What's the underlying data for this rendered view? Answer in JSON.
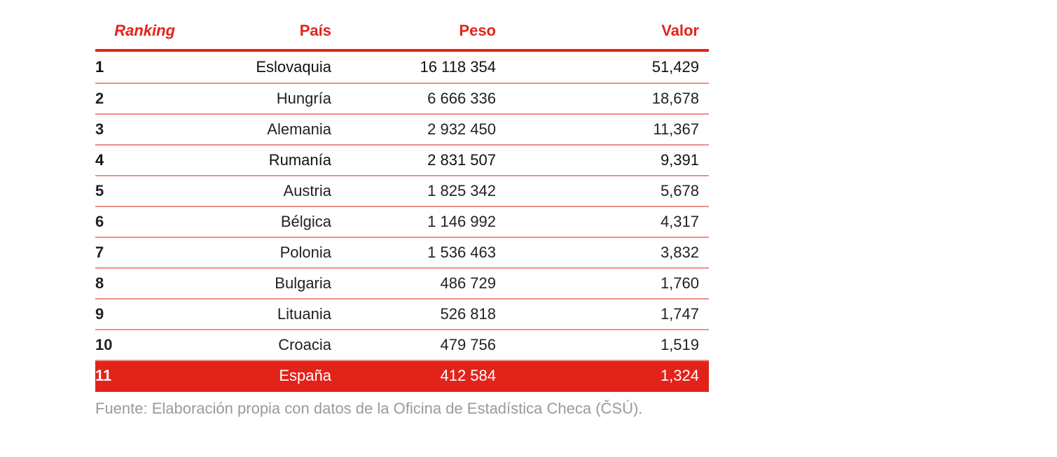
{
  "table": {
    "headers": {
      "rank": "Ranking",
      "country": "País",
      "weight": "Peso",
      "value": "Valor"
    },
    "rows": [
      {
        "rank": "1",
        "country": "Eslovaquia",
        "weight": "16 118 354",
        "value": "51,429"
      },
      {
        "rank": "2",
        "country": "Hungría",
        "weight": "6 666 336",
        "value": "18,678"
      },
      {
        "rank": "3",
        "country": "Alemania",
        "weight": "2 932 450",
        "value": "11,367"
      },
      {
        "rank": "4",
        "country": "Rumanía",
        "weight": "2 831 507",
        "value": "9,391"
      },
      {
        "rank": "5",
        "country": "Austria",
        "weight": "1 825 342",
        "value": "5,678"
      },
      {
        "rank": "6",
        "country": "Bélgica",
        "weight": "1 146 992",
        "value": "4,317"
      },
      {
        "rank": "7",
        "country": "Polonia",
        "weight": "1 536 463",
        "value": "3,832"
      },
      {
        "rank": "8",
        "country": "Bulgaria",
        "weight": "486 729",
        "value": "1,760"
      },
      {
        "rank": "9",
        "country": "Lituania",
        "weight": "526 818",
        "value": "1,747"
      },
      {
        "rank": "10",
        "country": "Croacia",
        "weight": "479 756",
        "value": "1,519"
      },
      {
        "rank": "11",
        "country": "España",
        "weight": "412 584",
        "value": "1,324"
      }
    ]
  },
  "source": "Fuente: Elaboración propia con datos de la Oficina de Estadística Checa (ČSÚ).",
  "colors": {
    "accent": "#e2231a",
    "row_divider": "#ef8f8a",
    "source_text": "#9a9a9a"
  }
}
